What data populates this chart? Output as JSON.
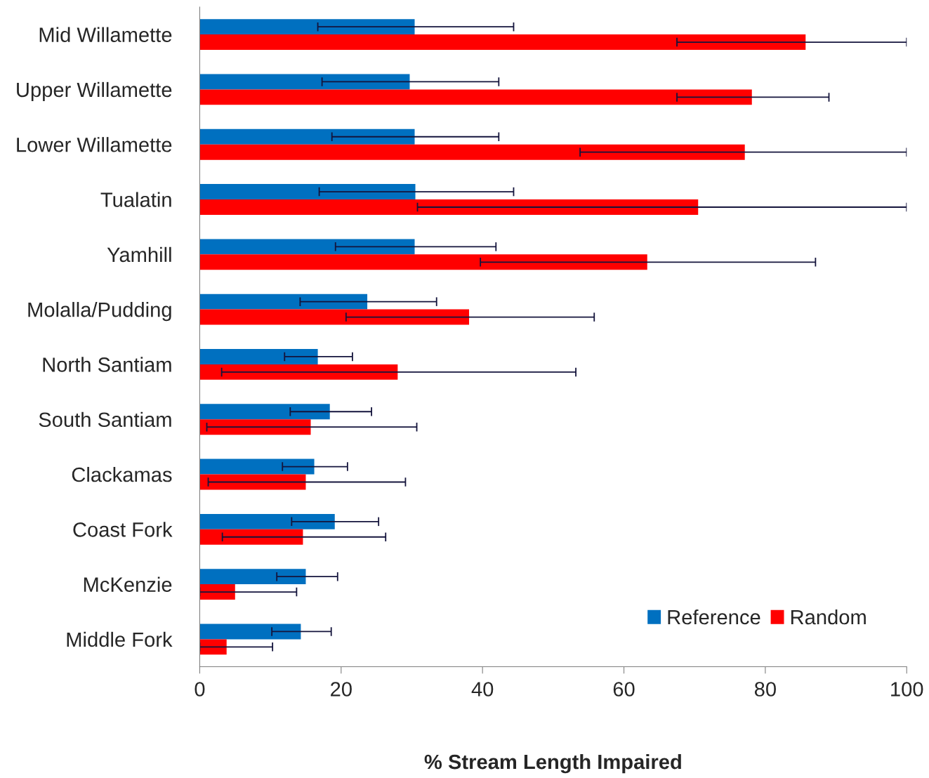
{
  "chart_data": {
    "type": "bar",
    "orientation": "horizontal",
    "xlabel": "% Stream Length Impaired",
    "categories": [
      "Mid Willamette",
      "Upper Willamette",
      "Lower Willamette",
      "Tualatin",
      "Yamhill",
      "Molalla/Pudding",
      "North Santiam",
      "South Santiam",
      "Clackamas",
      "Coast Fork",
      "McKenzie",
      "Middle Fork"
    ],
    "series": [
      {
        "name": "Reference",
        "color": "#0070c0",
        "values": [
          30.4,
          29.7,
          30.4,
          30.5,
          30.4,
          23.7,
          16.7,
          18.4,
          16.2,
          19.1,
          15.0,
          14.3
        ],
        "errors": [
          [
            16.7,
            44.4
          ],
          [
            17.3,
            42.3
          ],
          [
            18.7,
            42.3
          ],
          [
            16.9,
            44.4
          ],
          [
            19.2,
            41.9
          ],
          [
            14.2,
            33.5
          ],
          [
            12.0,
            21.6
          ],
          [
            12.8,
            24.3
          ],
          [
            11.7,
            20.9
          ],
          [
            13.0,
            25.3
          ],
          [
            10.9,
            19.5
          ],
          [
            10.2,
            18.6
          ]
        ]
      },
      {
        "name": "Random",
        "color": "#ff0000",
        "values": [
          85.7,
          78.1,
          77.1,
          70.5,
          63.3,
          38.1,
          28.0,
          15.7,
          15.0,
          14.6,
          5.0,
          3.8
        ],
        "errors": [
          [
            67.5,
            100
          ],
          [
            67.5,
            89.0
          ],
          [
            53.8,
            100
          ],
          [
            30.8,
            100
          ],
          [
            39.7,
            87.1
          ],
          [
            20.7,
            55.8
          ],
          [
            3.1,
            53.2
          ],
          [
            1.0,
            30.7
          ],
          [
            1.2,
            29.1
          ],
          [
            3.2,
            26.3
          ],
          [
            0,
            13.7
          ],
          [
            0,
            10.3
          ]
        ]
      }
    ],
    "xlim": [
      0,
      100
    ],
    "xticks": [
      0,
      20,
      40,
      60,
      80,
      100
    ],
    "grid": false,
    "legend": "bottom right"
  }
}
